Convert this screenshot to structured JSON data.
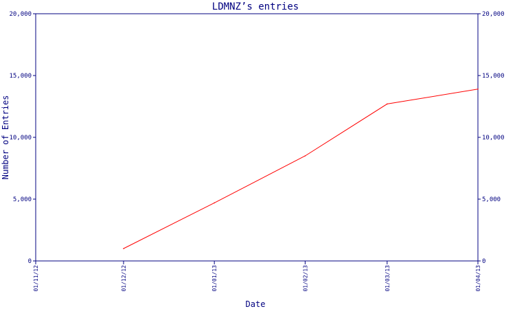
{
  "chart_data": {
    "type": "line",
    "title": "LDMNZ’s entries",
    "xlabel": "Date",
    "ylabel": "Number of Entries",
    "ylim": [
      0,
      20000
    ],
    "y_ticks": [
      0,
      5000,
      10000,
      15000,
      20000
    ],
    "y_tick_labels": [
      "0",
      "5,000",
      "10,000",
      "15,000",
      "20,000"
    ],
    "x_tick_labels": [
      "01/11/12",
      "01/12/12",
      "01/01/13",
      "01/02/13",
      "01/03/13",
      "01/04/13"
    ],
    "x_tick_dates": [
      "2012-11-01",
      "2012-12-01",
      "2013-01-01",
      "2013-02-01",
      "2013-03-01",
      "2013-04-01"
    ],
    "grid": false,
    "series": [
      {
        "color": "#ff0000",
        "points": [
          {
            "x": "2012-12-01",
            "y": 1000
          },
          {
            "x": "2013-01-01",
            "y": 4700
          },
          {
            "x": "2013-02-01",
            "y": 8500
          },
          {
            "x": "2013-03-01",
            "y": 12700
          },
          {
            "x": "2013-04-01",
            "y": 13900
          }
        ]
      }
    ]
  },
  "colors": {
    "axis": "#000080",
    "line": "#ff0000"
  }
}
